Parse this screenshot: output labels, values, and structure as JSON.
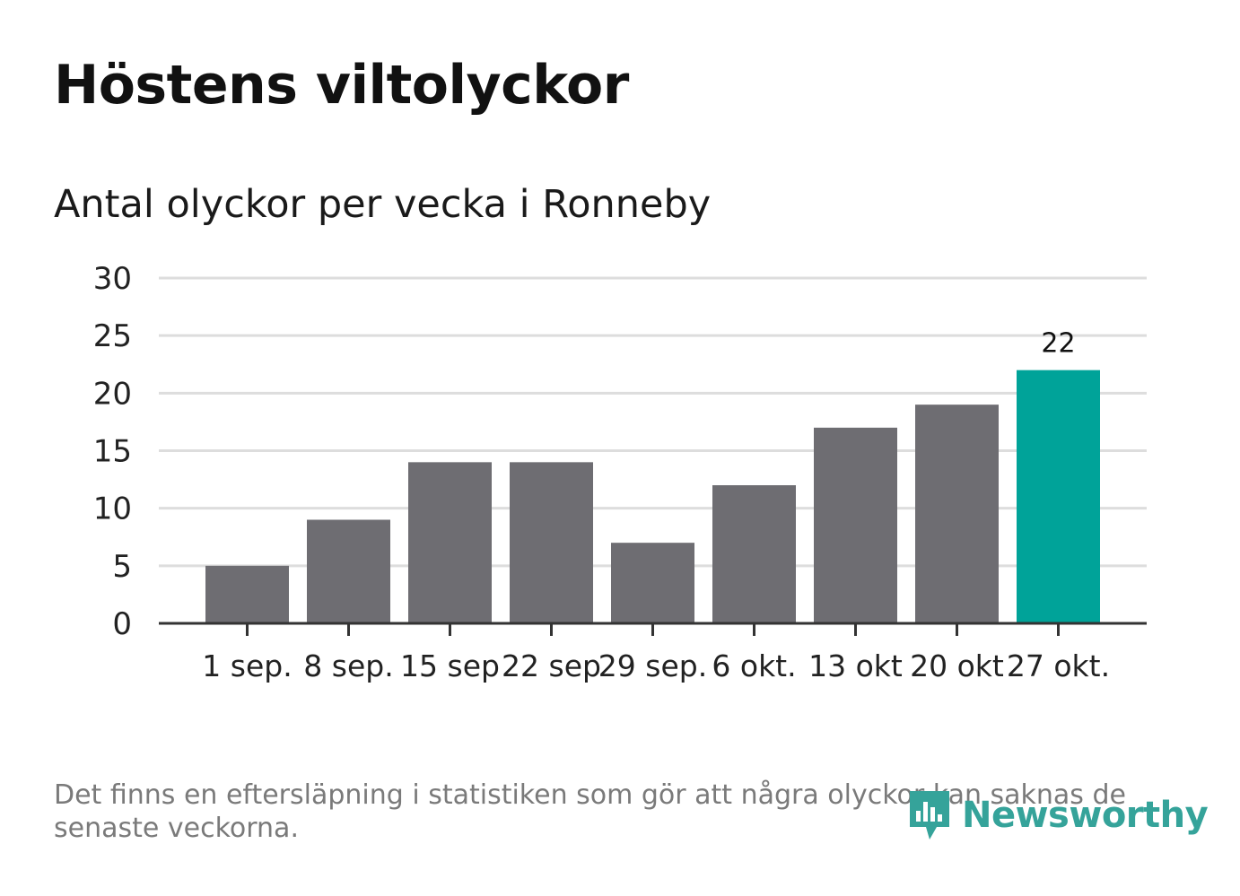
{
  "title": "Höstens viltolyckor",
  "subtitle": "Antal olyckor per vecka i Ronneby",
  "footnote": "Det finns en eftersläpning i statistiken som gör att några olyckor kan saknas de senaste veckorna.",
  "brand": {
    "name": "Newsworthy",
    "icon": "newsworthy-logo-icon",
    "color": "#35a39a"
  },
  "colors": {
    "bar": "#6e6d72",
    "highlight": "#00a399",
    "grid": "#dddddd",
    "axis": "#333333",
    "text": "#222222"
  },
  "chart_data": {
    "type": "bar",
    "title": "Antal olyckor per vecka i Ronneby",
    "xlabel": "",
    "ylabel": "",
    "categories": [
      "1 sep.",
      "8 sep.",
      "15 sep",
      "22 sep",
      "29 sep.",
      "6 okt.",
      "13 okt",
      "20 okt",
      "27 okt."
    ],
    "values": [
      5,
      9,
      14,
      14,
      7,
      12,
      17,
      19,
      22
    ],
    "highlight_index": 8,
    "data_labels": [
      {
        "index": 8,
        "text": "22"
      }
    ],
    "ylim": [
      0,
      30
    ],
    "yticks": [
      0,
      5,
      10,
      15,
      20,
      25,
      30
    ],
    "grid": true
  }
}
